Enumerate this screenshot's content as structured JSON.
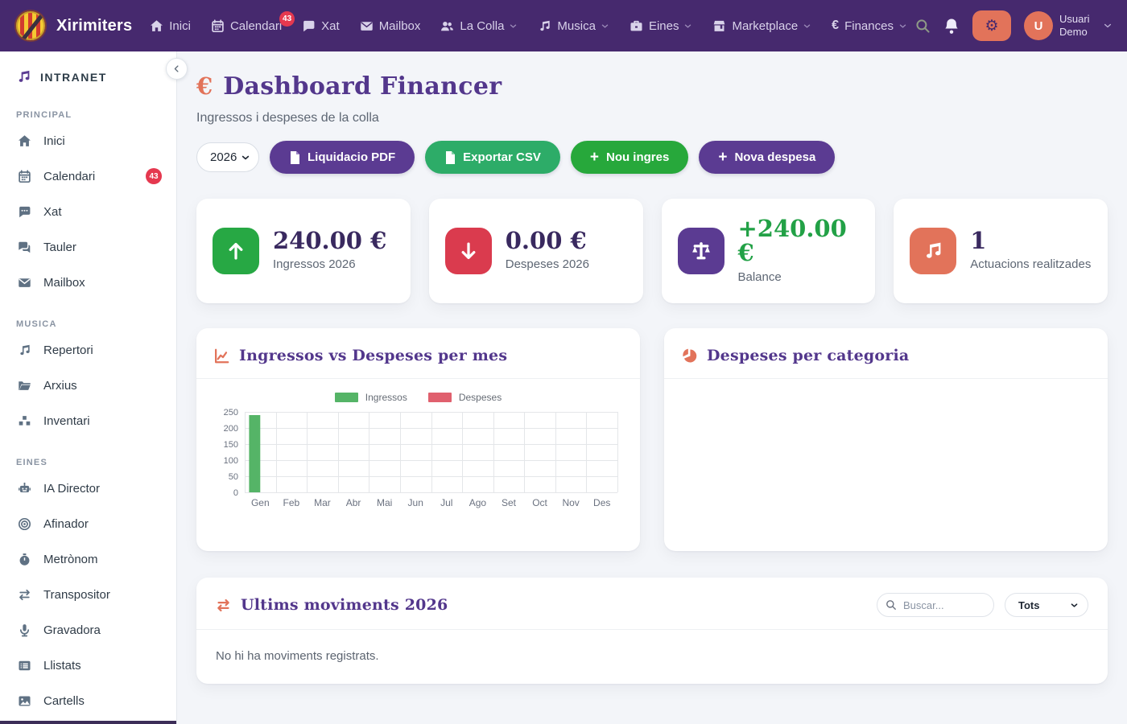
{
  "colors": {
    "navbar_bg": "#46296e",
    "accent_coral": "#e2735a",
    "accent_purple": "#5b3b92",
    "accent_green": "#27a83b",
    "accent_seagreen": "#2dac68",
    "stat_green": "#27a844",
    "stat_red": "#da3b4e",
    "badge_red": "#e5384f",
    "title_purple": "#53378c",
    "value_dark": "#39295f"
  },
  "navbar": {
    "brand": "Xirimiters",
    "items": [
      {
        "label": "Inici",
        "icon": "home-icon"
      },
      {
        "label": "Calendari",
        "icon": "calendar-icon",
        "badge": "43"
      },
      {
        "label": "Xat",
        "icon": "chat-icon"
      },
      {
        "label": "Mailbox",
        "icon": "mailbox-icon"
      },
      {
        "label": "La Colla",
        "icon": "users-icon",
        "dropdown": true
      },
      {
        "label": "Musica",
        "icon": "music-icon",
        "dropdown": true
      },
      {
        "label": "Eines",
        "icon": "toolbox-icon",
        "dropdown": true
      },
      {
        "label": "Marketplace",
        "icon": "store-icon",
        "dropdown": true
      },
      {
        "label": "Finances",
        "glyph": "€",
        "dropdown": true
      }
    ],
    "gear_glyph": "⚙",
    "user": {
      "initial": "U",
      "name": "Usuari Demo"
    }
  },
  "sidebar": {
    "brand_label": "INTRANET",
    "sections": [
      {
        "title": "PRINCIPAL",
        "items": [
          {
            "label": "Inici"
          },
          {
            "label": "Calendari",
            "badge": "43"
          },
          {
            "label": "Xat"
          },
          {
            "label": "Tauler"
          },
          {
            "label": "Mailbox"
          }
        ]
      },
      {
        "title": "MUSICA",
        "items": [
          {
            "label": "Repertori"
          },
          {
            "label": "Arxius"
          },
          {
            "label": "Inventari"
          }
        ]
      },
      {
        "title": "EINES",
        "items": [
          {
            "label": "IA Director"
          },
          {
            "label": "Afinador"
          },
          {
            "label": "Metrònom"
          },
          {
            "label": "Transpositor"
          },
          {
            "label": "Gravadora"
          },
          {
            "label": "Llistats"
          },
          {
            "label": "Cartells"
          }
        ]
      }
    ]
  },
  "page": {
    "title_icon": "€",
    "title": "Dashboard Financer",
    "subtitle": "Ingressos i despeses de la colla"
  },
  "toolbar": {
    "year_selected": "2026",
    "liquidacio_label": "Liquidacio PDF",
    "export_csv_label": "Exportar CSV",
    "plus": "+",
    "nou_ingres_label": "Nou ingres",
    "nova_despesa_label": "Nova despesa"
  },
  "stats": [
    {
      "value": "240.00 €",
      "label": "Ingressos 2026"
    },
    {
      "value": "0.00 €",
      "label": "Despeses 2026"
    },
    {
      "value": "+240.00 €",
      "label": "Balance"
    },
    {
      "value": "1",
      "label": "Actuacions realitzades"
    }
  ],
  "chart_data": [
    {
      "type": "bar",
      "title": "Ingressos vs Despeses per mes",
      "categories": [
        "Gen",
        "Feb",
        "Mar",
        "Abr",
        "Mai",
        "Jun",
        "Jul",
        "Ago",
        "Set",
        "Oct",
        "Nov",
        "Des"
      ],
      "series": [
        {
          "name": "Ingressos",
          "color": "#55b467",
          "values": [
            240,
            0,
            0,
            0,
            0,
            0,
            0,
            0,
            0,
            0,
            0,
            0
          ]
        },
        {
          "name": "Despeses",
          "color": "#e0606e",
          "values": [
            0,
            0,
            0,
            0,
            0,
            0,
            0,
            0,
            0,
            0,
            0,
            0
          ]
        }
      ],
      "ylim": [
        0,
        250
      ],
      "ytick_step": 50,
      "grid": true,
      "legend_position": "top"
    },
    {
      "type": "pie",
      "title": "Despeses per categoria",
      "slices": []
    }
  ],
  "movements": {
    "title": "Ultims moviments 2026",
    "search_placeholder": "Buscar...",
    "filter_selected": "Tots",
    "empty_text": "No hi ha moviments registrats."
  }
}
